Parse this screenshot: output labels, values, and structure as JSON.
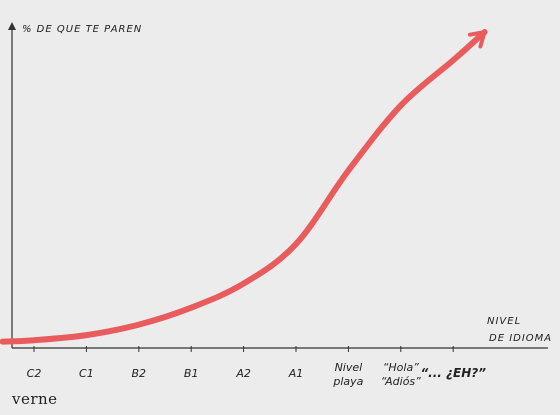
{
  "chart_data": {
    "type": "line",
    "title": "",
    "ylabel": "% DE QUE TE PAREN",
    "xlabel_lines": [
      "NIVEL",
      "DE IDIOMA"
    ],
    "categories": [
      {
        "lines": [
          "C2"
        ],
        "emphasis": false
      },
      {
        "lines": [
          "C1"
        ],
        "emphasis": false
      },
      {
        "lines": [
          "B2"
        ],
        "emphasis": false
      },
      {
        "lines": [
          "B1"
        ],
        "emphasis": false
      },
      {
        "lines": [
          "A2"
        ],
        "emphasis": false
      },
      {
        "lines": [
          "A1"
        ],
        "emphasis": false
      },
      {
        "lines": [
          "Nivel",
          "playa"
        ],
        "emphasis": false
      },
      {
        "lines": [
          "“Hola”",
          "“Adiós”"
        ],
        "emphasis": false
      },
      {
        "lines": [
          "“... ¿EH?”"
        ],
        "emphasis": true
      }
    ],
    "x": [
      -0.6,
      0,
      1,
      2,
      3,
      4,
      5,
      6,
      7,
      8,
      8.6
    ],
    "values": [
      0.5,
      1,
      2.8,
      6.5,
      12.5,
      21,
      35,
      61,
      84,
      100,
      110
    ],
    "ylim": [
      0,
      110
    ],
    "grid": false,
    "legend": "none",
    "arrow_at_end": true,
    "line_color": "#e85c5e",
    "axis_color": "#333333"
  },
  "brand": {
    "logo_text": "verne"
  }
}
